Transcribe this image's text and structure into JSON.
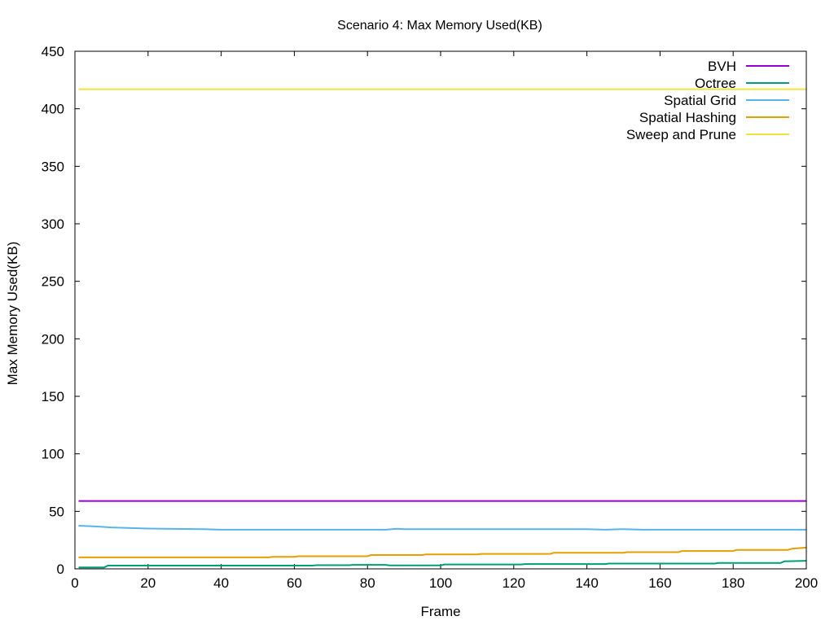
{
  "chart_data": {
    "type": "line",
    "title": "Scenario 4: Max Memory Used(KB)",
    "xlabel": "Frame",
    "ylabel": "Max Memory Used(KB)",
    "xlim": [
      0,
      200
    ],
    "ylim": [
      0,
      450
    ],
    "xticks": [
      "0",
      "20",
      "40",
      "60",
      "80",
      "100",
      "120",
      "140",
      "160",
      "180",
      "200"
    ],
    "yticks": [
      "0",
      "50",
      "100",
      "150",
      "200",
      "250",
      "300",
      "350",
      "400",
      "450"
    ],
    "grid": false,
    "legend_position": "top-right",
    "series": [
      {
        "name": "BVH",
        "color": "#9400d3",
        "x": [
          1,
          200
        ],
        "y": [
          59,
          59
        ]
      },
      {
        "name": "Octree",
        "color": "#009e73",
        "x": [
          1,
          8,
          9,
          65,
          66,
          75,
          76,
          85,
          86,
          100,
          101,
          122,
          123,
          145,
          146,
          175,
          176,
          193,
          194,
          200
        ],
        "y": [
          1.3,
          1.3,
          2.8,
          2.8,
          3.2,
          3.2,
          3.5,
          3.5,
          3.0,
          3.0,
          3.8,
          3.8,
          4.2,
          4.2,
          4.6,
          4.6,
          5.2,
          5.2,
          6.5,
          7
        ]
      },
      {
        "name": "Spatial Grid",
        "color": "#56b4e9",
        "x": [
          1,
          5,
          10,
          20,
          35,
          40,
          60,
          85,
          88,
          90,
          120,
          140,
          145,
          150,
          155,
          165,
          175,
          200
        ],
        "y": [
          37.5,
          37,
          36,
          35,
          34.5,
          34,
          34,
          34,
          34.8,
          34.5,
          34.5,
          34.5,
          34,
          34.5,
          34,
          34,
          34,
          34
        ]
      },
      {
        "name": "Spatial Hashing",
        "color": "#e69f00",
        "x": [
          1,
          53,
          54,
          60,
          61,
          80,
          81,
          95,
          96,
          110,
          111,
          130,
          131,
          150,
          151,
          165,
          166,
          180,
          181,
          195,
          196,
          200
        ],
        "y": [
          10,
          10,
          10.5,
          10.5,
          11,
          11,
          12,
          12,
          12.5,
          12.5,
          13,
          13,
          14,
          14,
          14.5,
          14.5,
          15.5,
          15.5,
          16.5,
          16.5,
          17.5,
          18.5
        ]
      },
      {
        "name": "Sweep and Prune",
        "color": "#f0e442",
        "x": [
          1,
          200
        ],
        "y": [
          417,
          417
        ]
      }
    ]
  }
}
